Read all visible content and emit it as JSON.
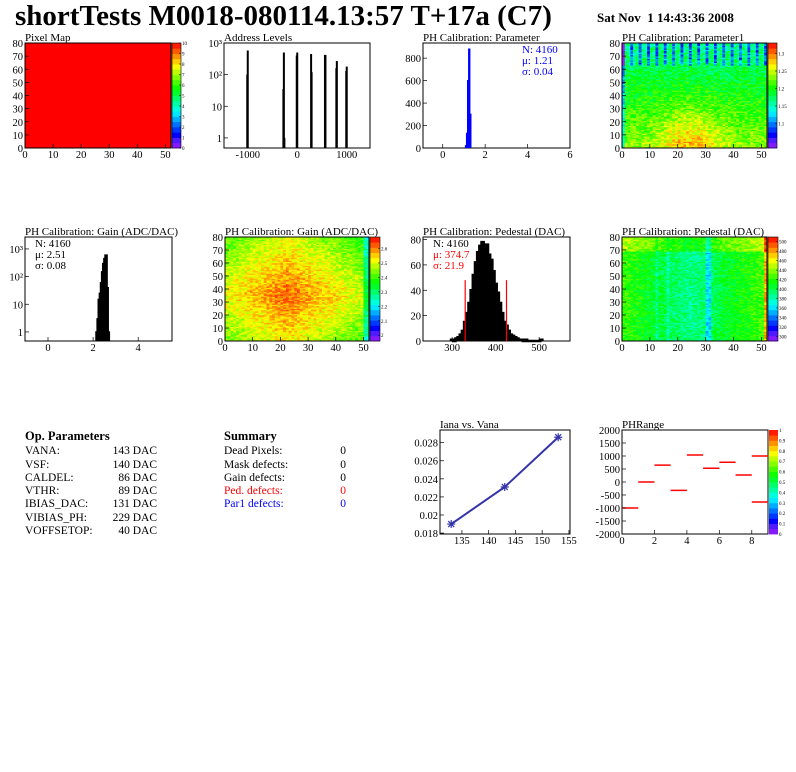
{
  "header": {
    "title": "shortTests M0018-080114.13:57 T+17a (C7)",
    "date": "Sat Nov  1 14:43:36 2008"
  },
  "op_parameters": {
    "title": "Op. Parameters",
    "rows": [
      {
        "label": "VANA:",
        "value": "143 DAC"
      },
      {
        "label": "VSF:",
        "value": "140 DAC"
      },
      {
        "label": "CALDEL:",
        "value": "86 DAC"
      },
      {
        "label": "VTHR:",
        "value": "89 DAC"
      },
      {
        "label": "IBIAS_DAC:",
        "value": "131 DAC"
      },
      {
        "label": "VIBIAS_PH:",
        "value": "229 DAC"
      },
      {
        "label": "VOFFSETOP:",
        "value": "40 DAC"
      }
    ]
  },
  "summary": {
    "title": "Summary",
    "rows": [
      {
        "label": "Dead Pixels:",
        "value": "0",
        "color": "#000000"
      },
      {
        "label": "Mask defects:",
        "value": "0",
        "color": "#000000"
      },
      {
        "label": "Gain defects:",
        "value": "0",
        "color": "#000000"
      },
      {
        "label": "Ped. defects:",
        "value": "0",
        "color": "#ff0000"
      },
      {
        "label": "Par1 defects:",
        "value": "0",
        "color": "#0000ff"
      }
    ]
  },
  "chart_data": [
    {
      "type": "heatmap",
      "title": "Pixel Map",
      "xlim": [
        0,
        52
      ],
      "ylim": [
        0,
        80
      ],
      "zlim": [
        0,
        10
      ],
      "xticks": [
        "0",
        "10",
        "20",
        "30",
        "40",
        "50"
      ],
      "yticks": [
        "0",
        "10",
        "20",
        "30",
        "40",
        "50",
        "60",
        "70",
        "80"
      ],
      "zticks": [
        "0",
        "1",
        "2",
        "3",
        "4",
        "5",
        "6",
        "7",
        "8",
        "9",
        "10"
      ],
      "uniform_value": 10,
      "pattern": "uniform"
    },
    {
      "type": "bar",
      "title": "Address Levels",
      "xlim": [
        -1480,
        1470
      ],
      "ylim": [
        0.48,
        1000
      ],
      "ylog": true,
      "xticks": [
        "-1000",
        "0",
        "1000"
      ],
      "yticks": [
        "1",
        "10",
        "10²",
        "10³"
      ],
      "color": "#000000",
      "peaks": [
        [
          -1010,
          100
        ],
        [
          -1000,
          580
        ],
        [
          -280,
          35
        ],
        [
          -270,
          500
        ],
        [
          -260,
          1
        ],
        [
          -10,
          400
        ],
        [
          0,
          500
        ],
        [
          280,
          450
        ],
        [
          290,
          120
        ],
        [
          560,
          420
        ],
        [
          570,
          420
        ],
        [
          790,
          160
        ],
        [
          800,
          270
        ],
        [
          990,
          130
        ],
        [
          1000,
          180
        ]
      ]
    },
    {
      "type": "bar",
      "title": "PH Calibration: Parameter",
      "xlim": [
        -0.93,
        6
      ],
      "ylim": [
        0,
        935
      ],
      "xticks": [
        "0",
        "2",
        "4",
        "6"
      ],
      "yticks": [
        "0",
        "200",
        "400",
        "600",
        "800"
      ],
      "color": "#0000ff",
      "bin_width": 0.05,
      "bins": [
        [
          1.1,
          20
        ],
        [
          1.15,
          130
        ],
        [
          1.2,
          600
        ],
        [
          1.25,
          880
        ],
        [
          1.3,
          300
        ]
      ],
      "stats": {
        "lines": [
          "N: 4160",
          "μ: 1.21",
          "σ: 0.04"
        ],
        "colors": [
          "#0000ff",
          "#0000ff",
          "#0000ff"
        ]
      }
    },
    {
      "type": "heatmap",
      "title": "PH Calibration: Parameter1",
      "xlim": [
        0,
        52
      ],
      "ylim": [
        0,
        80
      ],
      "zlim": [
        1.03,
        1.33
      ],
      "xticks": [
        "0",
        "10",
        "20",
        "30",
        "40",
        "50"
      ],
      "yticks": [
        "0",
        "10",
        "20",
        "30",
        "40",
        "50",
        "60",
        "70",
        "80"
      ],
      "zticks": [
        "1.1",
        "1.15",
        "1.2",
        "1.25",
        "1.3"
      ],
      "pattern": "param1"
    },
    {
      "type": "bar",
      "title": "PH Calibration: Gain (ADC/DAC)",
      "xlim": [
        -1.02,
        5.5
      ],
      "ylim": [
        0.47,
        2700
      ],
      "ylog": true,
      "xticks": [
        "0",
        "2",
        "4"
      ],
      "yticks": [
        "1",
        "10",
        "10²",
        "10³"
      ],
      "color": "#000000",
      "bin_width": 0.05,
      "bins": [
        [
          2.15,
          1
        ],
        [
          2.2,
          3
        ],
        [
          2.25,
          15
        ],
        [
          2.3,
          25
        ],
        [
          2.35,
          60
        ],
        [
          2.4,
          150
        ],
        [
          2.45,
          300
        ],
        [
          2.5,
          450
        ],
        [
          2.55,
          600
        ],
        [
          2.6,
          600
        ],
        [
          2.65,
          40
        ],
        [
          2.7,
          1
        ]
      ],
      "stats": {
        "lines": [
          "N: 4160",
          "μ: 2.51",
          "σ: 0.08"
        ],
        "colors": [
          "#000000",
          "#000000",
          "#000000"
        ]
      }
    },
    {
      "type": "heatmap",
      "title": "PH Calibration: Gain (ADC/DAC)",
      "xlim": [
        0,
        52
      ],
      "ylim": [
        0,
        80
      ],
      "zlim": [
        1.96,
        2.68
      ],
      "xticks": [
        "0",
        "10",
        "20",
        "30",
        "40",
        "50"
      ],
      "yticks": [
        "0",
        "10",
        "20",
        "30",
        "40",
        "50",
        "60",
        "70",
        "80"
      ],
      "zticks": [
        "2",
        "2.1",
        "2.2",
        "2.3",
        "2.4",
        "2.5",
        "2.6"
      ],
      "pattern": "gain"
    },
    {
      "type": "bar",
      "title": "PH Calibration: Pedestal (DAC)",
      "xlim": [
        233,
        571
      ],
      "ylim": [
        0,
        82
      ],
      "xticks": [
        "300",
        "400",
        "500"
      ],
      "yticks": [
        "0",
        "20",
        "40",
        "60",
        "80"
      ],
      "color": "#000000",
      "bin_width": 5,
      "bins": [
        [
          300,
          1
        ],
        [
          310,
          2
        ],
        [
          315,
          3
        ],
        [
          320,
          5
        ],
        [
          325,
          8
        ],
        [
          330,
          15
        ],
        [
          335,
          22
        ],
        [
          340,
          30
        ],
        [
          345,
          40
        ],
        [
          350,
          52
        ],
        [
          355,
          62
        ],
        [
          360,
          70
        ],
        [
          365,
          75
        ],
        [
          370,
          78
        ],
        [
          375,
          72
        ],
        [
          380,
          76
        ],
        [
          385,
          68
        ],
        [
          390,
          64
        ],
        [
          395,
          55
        ],
        [
          400,
          45
        ],
        [
          405,
          38
        ],
        [
          410,
          30
        ],
        [
          415,
          22
        ],
        [
          420,
          15
        ],
        [
          425,
          12
        ],
        [
          430,
          8
        ],
        [
          435,
          5
        ],
        [
          440,
          4
        ],
        [
          445,
          3
        ],
        [
          450,
          2
        ],
        [
          455,
          1
        ],
        [
          460,
          1
        ],
        [
          470,
          1
        ],
        [
          505,
          1
        ]
      ],
      "cut_lines": [
        330,
        425
      ],
      "cut_color": "#ff0000",
      "cut_height": 48,
      "stats": {
        "lines": [
          "N: 4160",
          "μ: 374.7",
          "σ: 21.9"
        ],
        "colors": [
          "#000000",
          "#ff0000",
          "#ff0000"
        ]
      }
    },
    {
      "type": "heatmap",
      "title": "PH Calibration: Pedestal (DAC)",
      "xlim": [
        0,
        52
      ],
      "ylim": [
        0,
        80
      ],
      "zlim": [
        290,
        510
      ],
      "xticks": [
        "0",
        "10",
        "20",
        "30",
        "40",
        "50"
      ],
      "yticks": [
        "0",
        "10",
        "20",
        "30",
        "40",
        "50",
        "60",
        "70",
        "80"
      ],
      "zticks": [
        "300",
        "320",
        "340",
        "360",
        "380",
        "400",
        "420",
        "440",
        "460",
        "480",
        "500"
      ],
      "pattern": "pedestal"
    },
    {
      "type": "line",
      "title": "Iana vs. Vana",
      "xlim": [
        130.9,
        155.2
      ],
      "ylim": [
        0.0179,
        0.0294
      ],
      "xticks": [
        "135",
        "140",
        "145",
        "150",
        "155"
      ],
      "yticks": [
        "0.018",
        "0.02",
        "0.022",
        "0.024",
        "0.026",
        "0.028"
      ],
      "color": "#3333aa",
      "x": [
        133,
        143,
        153
      ],
      "y": [
        0.019,
        0.0231,
        0.0286
      ]
    },
    {
      "type": "bar",
      "title": "PHRange",
      "xlim": [
        0,
        9
      ],
      "ylim": [
        -2000,
        2000
      ],
      "zlim": [
        0,
        1
      ],
      "xticks": [
        "0",
        "2",
        "4",
        "6",
        "8"
      ],
      "yticks": [
        "-2000",
        "-1500",
        "-1000",
        "-500",
        "0",
        "500",
        "1000",
        "1500",
        "2000"
      ],
      "zticks": [
        "0",
        "0.1",
        "0.2",
        "0.3",
        "0.4",
        "0.5",
        "0.6",
        "0.7",
        "0.8",
        "0.9",
        "1"
      ],
      "color": "#ff0000",
      "segments": [
        [
          0,
          1,
          -1000
        ],
        [
          1,
          2,
          0
        ],
        [
          2,
          3,
          650
        ],
        [
          3,
          4,
          -320
        ],
        [
          4,
          5,
          1040
        ],
        [
          5,
          6,
          530
        ],
        [
          6,
          7,
          760
        ],
        [
          7,
          8,
          270
        ],
        [
          8,
          9,
          1000
        ],
        [
          8,
          9,
          -770
        ]
      ]
    }
  ]
}
